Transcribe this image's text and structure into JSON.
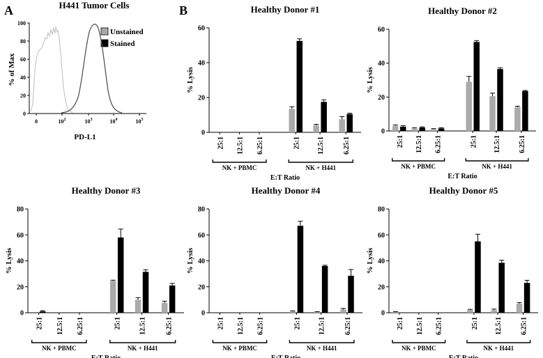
{
  "panel_labels": {
    "a": "A",
    "b": "B"
  },
  "colors": {
    "unstained": "#aaaaaa",
    "stained": "#000000",
    "hist_unstained": "#c8c8c8",
    "hist_stained": "#555555"
  },
  "chart_data": [
    {
      "type": "histogram",
      "title": "H441 Tumor Cells",
      "xlabel": "PD-L1",
      "ylabel": "% of Max",
      "ylim": [
        0,
        100
      ],
      "yticks": [
        "0",
        "20",
        "40",
        "60",
        "80",
        "100"
      ],
      "xticks": [
        {
          "base": "0",
          "exp": ""
        },
        {
          "base": "10",
          "exp": "2"
        },
        {
          "base": "10",
          "exp": "3"
        },
        {
          "base": "10",
          "exp": "4"
        },
        {
          "base": "10",
          "exp": "5"
        }
      ],
      "legend": [
        "Unstained",
        "Stained"
      ],
      "legend_position": "top-right"
    },
    {
      "type": "bar",
      "title": "Healthy Donor #1",
      "ylabel": "% Lysis",
      "xlabel": "E:T Ratio",
      "ylim": [
        0,
        60
      ],
      "yticks": [
        "0",
        "20",
        "40",
        "60"
      ],
      "categories": [
        "25:1",
        "12.5:1",
        "6.25:1",
        "25:1",
        "12.5:1",
        "6.25:1"
      ],
      "groups": [
        "NK + PBMC",
        "NK + H441"
      ],
      "series": [
        {
          "values": [
            0,
            0,
            0,
            13.5,
            4,
            7.5
          ],
          "errors": [
            0,
            0,
            0,
            1.2,
            0.6,
            1.5
          ]
        },
        {
          "values": [
            0,
            0,
            0,
            52.5,
            17.5,
            10.5
          ],
          "errors": [
            0,
            0,
            0,
            1.2,
            1.2,
            0.5
          ]
        }
      ]
    },
    {
      "type": "bar",
      "title": "Healthy Donor #2",
      "ylabel": "% Lysis",
      "xlabel": "E:T Ratio",
      "ylim": [
        0,
        60
      ],
      "yticks": [
        "0",
        "20",
        "40",
        "60"
      ],
      "categories": [
        "25:1",
        "12.5:1",
        "6.25:1",
        "25:1",
        "12.5:1",
        "6.25:1"
      ],
      "groups": [
        "NK + PBMC",
        "NK + H441"
      ],
      "series": [
        {
          "values": [
            3,
            1.5,
            1,
            29,
            20.5,
            14
          ],
          "errors": [
            0.6,
            0.4,
            0.4,
            3.2,
            1.8,
            0.6
          ]
        },
        {
          "values": [
            2.5,
            2,
            1.5,
            52.5,
            36.5,
            23.5
          ],
          "errors": [
            0.6,
            0.4,
            0.4,
            0.8,
            0.7,
            0.4
          ]
        }
      ]
    },
    {
      "type": "bar",
      "title": "Healthy Donor #3",
      "ylabel": "% Lysis",
      "xlabel": "E:T Ratio",
      "ylim": [
        0,
        80
      ],
      "yticks": [
        "0",
        "20",
        "40",
        "60",
        "80"
      ],
      "categories": [
        "25:1",
        "12.5:1",
        "6.25:1",
        "25:1",
        "12.5:1",
        "6.25:1"
      ],
      "groups": [
        "NK + PBMC",
        "NK + H441"
      ],
      "series": [
        {
          "values": [
            0,
            0,
            0,
            24.5,
            10,
            7.5
          ],
          "errors": [
            0,
            0,
            0,
            0.6,
            1.6,
            1.4
          ]
        },
        {
          "values": [
            1,
            0,
            0,
            58,
            31.5,
            21
          ],
          "errors": [
            0.6,
            0,
            0,
            6.5,
            1.6,
            1.6
          ]
        }
      ]
    },
    {
      "type": "bar",
      "title": "Healthy Donor #4",
      "ylabel": "% Lysis",
      "xlabel": "E:T Ratio",
      "ylim": [
        0,
        80
      ],
      "yticks": [
        "0",
        "20",
        "40",
        "60",
        "80"
      ],
      "categories": [
        "25:1",
        "12.5:1",
        "6.25:1",
        "25:1",
        "12.5:1",
        "6.25:1"
      ],
      "groups": [
        "NK + PBMC",
        "NK + H441"
      ],
      "series": [
        {
          "values": [
            0,
            0,
            0,
            1,
            0.5,
            2.5
          ],
          "errors": [
            0,
            0,
            0,
            0.5,
            0.3,
            0.8
          ]
        },
        {
          "values": [
            0,
            0,
            0,
            67,
            36,
            28.5
          ],
          "errors": [
            0,
            0,
            0,
            3.5,
            0.6,
            4.8
          ]
        }
      ]
    },
    {
      "type": "bar",
      "title": "Healthy Donor #5",
      "ylabel": "% Lysis",
      "xlabel": "E:T Ratio",
      "ylim": [
        0,
        80
      ],
      "yticks": [
        "0",
        "20",
        "40",
        "60",
        "80"
      ],
      "categories": [
        "25:1",
        "12.5:1",
        "6.25:1",
        "25:1",
        "12.5:1",
        "6.25:1"
      ],
      "groups": [
        "NK + PBMC",
        "NK + H441"
      ],
      "series": [
        {
          "values": [
            0.5,
            0,
            0,
            2,
            2,
            7
          ],
          "errors": [
            0.3,
            0,
            0,
            0.6,
            0.8,
            0.8
          ]
        },
        {
          "values": [
            0,
            0,
            0,
            55,
            38.5,
            23
          ],
          "errors": [
            0,
            0,
            0,
            5.5,
            2,
            2
          ]
        }
      ]
    }
  ]
}
